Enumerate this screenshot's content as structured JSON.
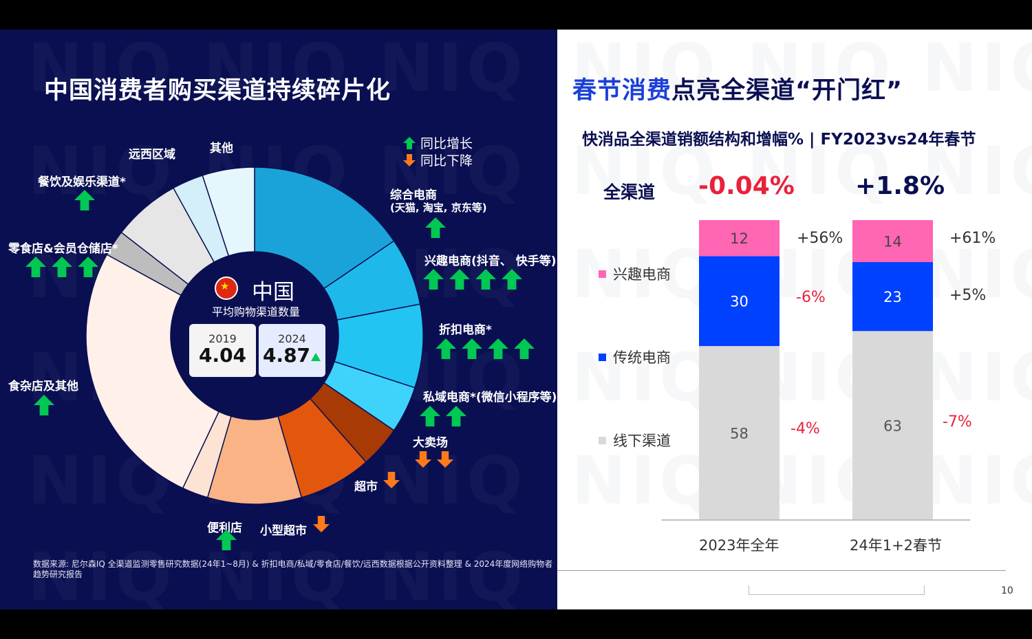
{
  "left_title": "中国消费者购买渠道持续碎片化",
  "right_title_part1": "春节消费",
  "right_title_part2": "点亮全渠道“开门红”",
  "legend_up": "同比增长",
  "legend_down": "同比下降",
  "center": {
    "country": "中国",
    "subtitle": "平均购物渠道数量",
    "y1": "2019",
    "v1": "4.04",
    "y2": "2024",
    "v2": "4.87"
  },
  "source": "数据来源: 尼尔森IQ 全渠道监测零售研究数据(24年1~8月) & 折扣电商/私域/零食店/餐饮/远西数据根据公开资料整理 & 2024年度网络购物者趋势研究报告",
  "colors": {
    "up": "#00c853",
    "down": "#ff7a1a",
    "navy": "#0a0f52",
    "pink": "#ff66b3",
    "blue": "#0040ff",
    "gray": "#d9d9d9",
    "red": "#e8223a"
  },
  "donut": [
    {
      "name": "综合电商",
      "sub": "(天猫, 淘宝, 京东等)",
      "share": 15.5,
      "color": "#1aa3d9",
      "arrows": 1,
      "dir": "up"
    },
    {
      "name": "兴趣电商(抖音、 快手等)",
      "share": 6.5,
      "color": "#1fb8ea",
      "arrows": 4,
      "dir": "up"
    },
    {
      "name": "折扣电商*",
      "share": 8.0,
      "color": "#22c4f2",
      "arrows": 4,
      "dir": "up"
    },
    {
      "name": "私域电商*(微信小程序等)",
      "share": 4.5,
      "color": "#3fd3fb",
      "arrows": 2,
      "dir": "up"
    },
    {
      "name": "大卖场",
      "share": 4.0,
      "color": "#a83a06",
      "arrows": 2,
      "dir": "down"
    },
    {
      "name": "超市",
      "share": 7.0,
      "color": "#e3570c",
      "arrows": 1,
      "dir": "down"
    },
    {
      "name": "小型超市",
      "share": 9.0,
      "color": "#f9b385",
      "arrows": 1,
      "dir": "down"
    },
    {
      "name": "便利店",
      "share": 2.5,
      "color": "#fde3d3",
      "arrows": 1,
      "dir": "up"
    },
    {
      "name": "食杂店及其他",
      "share": 26.0,
      "color": "#fff0e9",
      "arrows": 1,
      "dir": "up"
    },
    {
      "name": "零食店&会员仓储店*",
      "share": 2.5,
      "color": "#bdbdbd",
      "arrows": 3,
      "dir": "up"
    },
    {
      "name": "餐饮及娱乐渠道*",
      "share": 6.5,
      "color": "#e6e6e6",
      "arrows": 1,
      "dir": "up"
    },
    {
      "name": "远西区域",
      "share": 3.0,
      "color": "#d4eefa",
      "arrows": 0,
      "dir": "up"
    },
    {
      "name": "其他",
      "share": 5.0,
      "color": "#e6f6fd",
      "arrows": 0,
      "dir": "up"
    }
  ],
  "chart_data": {
    "type": "bar",
    "title": "快消品全渠道销额结构和增幅% | FY2023vs24年春节",
    "categories": [
      "2023年全年",
      "24年1+2春节"
    ],
    "series": [
      {
        "name": "线下渠道",
        "values": [
          58,
          63
        ],
        "growth": [
          "-4%",
          "-7%"
        ],
        "color": "#d9d9d9"
      },
      {
        "name": "传统电商",
        "values": [
          30,
          23
        ],
        "growth": [
          "-6%",
          "+5%"
        ],
        "color": "#0040ff"
      },
      {
        "name": "兴趣电商",
        "values": [
          12,
          14
        ],
        "growth": [
          "+56%",
          "+61%"
        ],
        "color": "#ff66b3"
      }
    ],
    "total_label": "全渠道",
    "total_growth": [
      "-0.04%",
      "+1.8%"
    ],
    "stacked": true,
    "ylim": [
      0,
      100
    ]
  },
  "page_number": "10"
}
